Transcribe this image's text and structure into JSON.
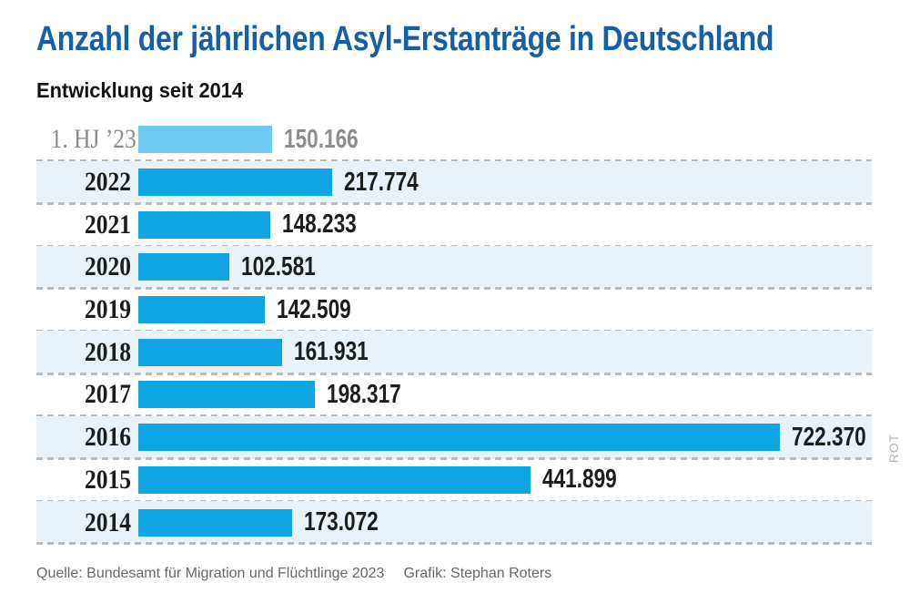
{
  "header": {
    "title": "Anzahl der jährlichen Asyl-Erstanträge in Deutschland",
    "subtitle": "Entwicklung seit 2014"
  },
  "chart_data": {
    "type": "bar",
    "orientation": "horizontal",
    "title": "Anzahl der jährlichen Asyl-Erstanträge in Deutschland",
    "subtitle": "Entwicklung seit 2014",
    "categories": [
      "1. HJ ’23",
      "2022",
      "2021",
      "2020",
      "2019",
      "2018",
      "2017",
      "2016",
      "2015",
      "2014"
    ],
    "values": [
      150166,
      217774,
      148233,
      102581,
      142509,
      161931,
      198317,
      722370,
      441899,
      173072
    ],
    "value_labels": [
      "150.166",
      "217.774",
      "148.233",
      "102.581",
      "142.509",
      "161.931",
      "198.317",
      "722.370",
      "441.899",
      "173.072"
    ],
    "xlim": [
      0,
      722370
    ],
    "grid": false,
    "legend": "none",
    "rows": [
      {
        "key": "hj1-23",
        "label": "1. HJ ’23",
        "value": 150166,
        "display": "150.166",
        "muted": true,
        "shaded": false
      },
      {
        "key": "2022",
        "label": "2022",
        "value": 217774,
        "display": "217.774",
        "muted": false,
        "shaded": true
      },
      {
        "key": "2021",
        "label": "2021",
        "value": 148233,
        "display": "148.233",
        "muted": false,
        "shaded": false
      },
      {
        "key": "2020",
        "label": "2020",
        "value": 102581,
        "display": "102.581",
        "muted": false,
        "shaded": true
      },
      {
        "key": "2019",
        "label": "2019",
        "value": 142509,
        "display": "142.509",
        "muted": false,
        "shaded": false
      },
      {
        "key": "2018",
        "label": "2018",
        "value": 161931,
        "display": "161.931",
        "muted": false,
        "shaded": true
      },
      {
        "key": "2017",
        "label": "2017",
        "value": 198317,
        "display": "198.317",
        "muted": false,
        "shaded": false
      },
      {
        "key": "2016",
        "label": "2016",
        "value": 722370,
        "display": "722.370",
        "muted": false,
        "shaded": true
      },
      {
        "key": "2015",
        "label": "2015",
        "value": 441899,
        "display": "441.899",
        "muted": false,
        "shaded": false
      },
      {
        "key": "2014",
        "label": "2014",
        "value": 173072,
        "display": "173.072",
        "muted": false,
        "shaded": true
      }
    ]
  },
  "footer": {
    "source": "Quelle: Bundesamt für Migration und Flüchtlinge 2023",
    "credit": "Grafik: Stephan Roters"
  },
  "watermark": {
    "label": "ROT"
  },
  "colors": {
    "title_color": "#175fa5",
    "bar_color": "#12a5e4",
    "bar_muted_color": "#6ecaf0",
    "row_shade_color": "#e9f2f9",
    "dash_color": "#bbbcbe",
    "text_color": "#1d1d1b",
    "muted_text_color": "#8b8d90",
    "footer_text_color": "#656769",
    "watermark_color": "#b3b4b6"
  }
}
